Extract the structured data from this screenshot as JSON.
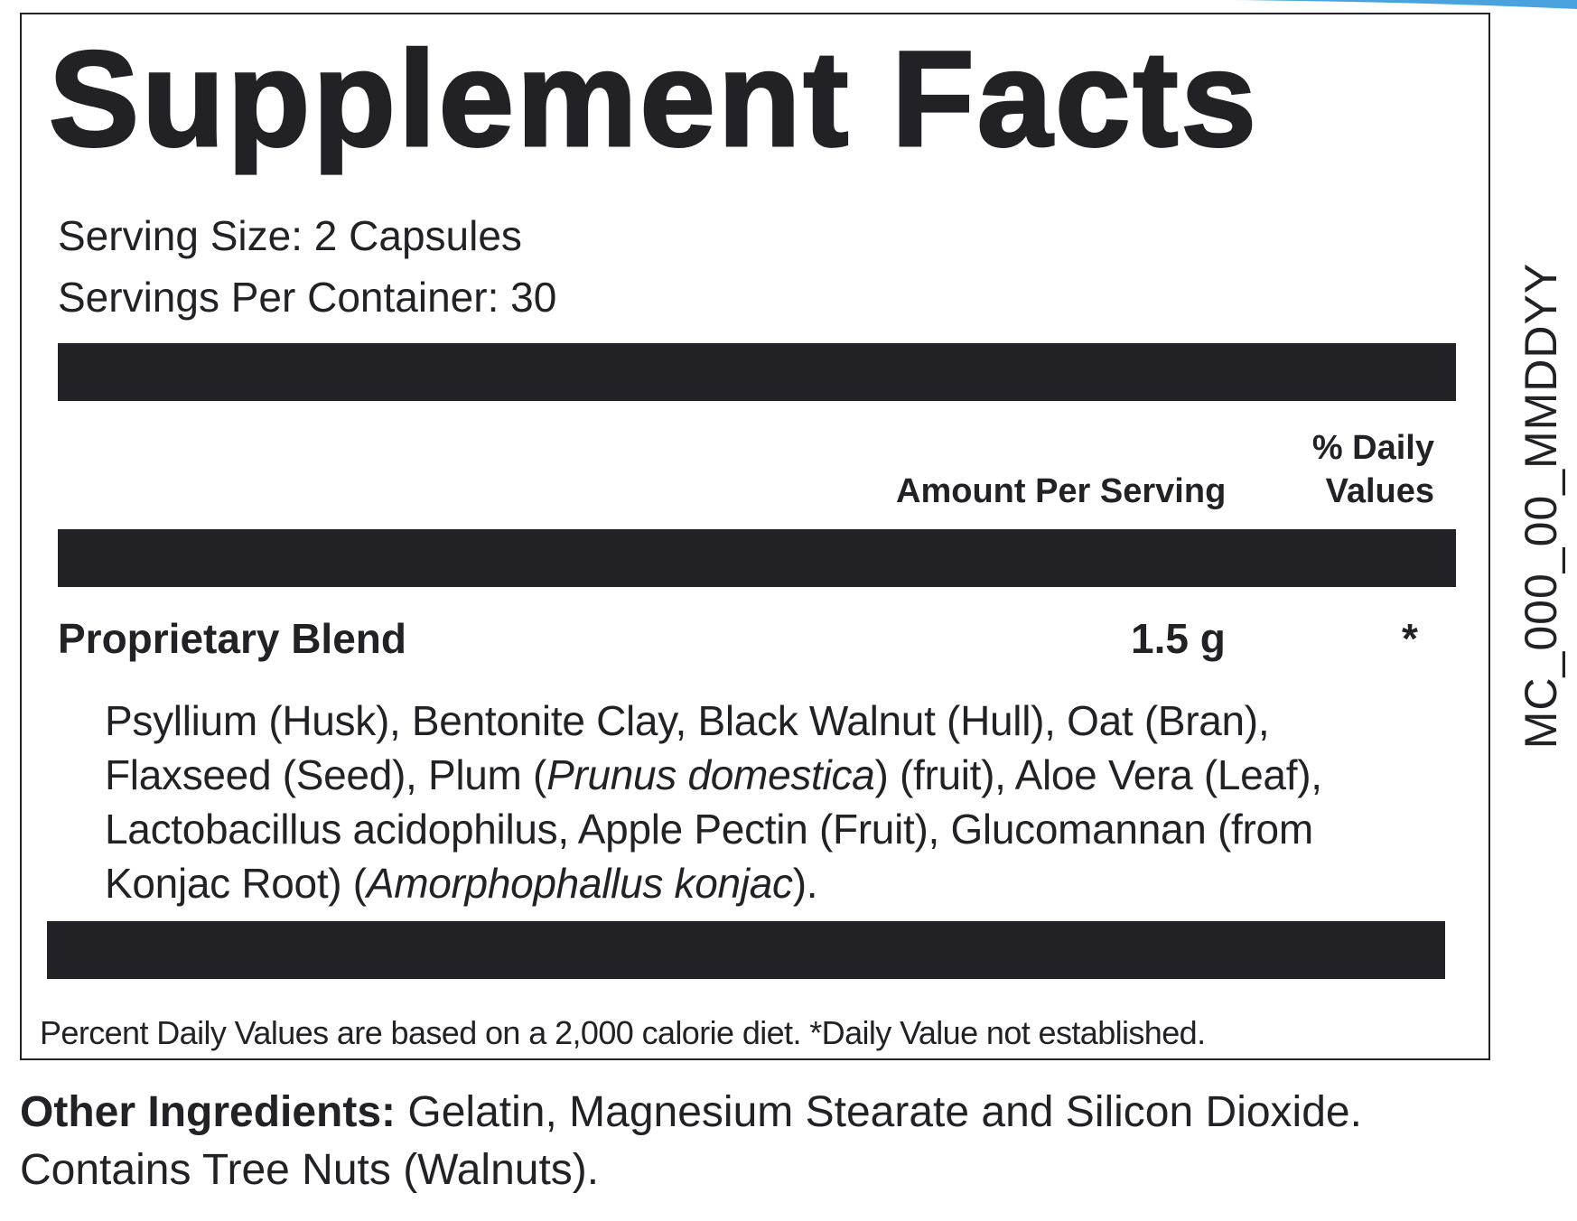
{
  "colors": {
    "ink": "#222226",
    "background": "#ffffff",
    "accent": "#4aa3df"
  },
  "label": {
    "title": "Supplement Facts",
    "serving_size": "Serving Size: 2 Capsules",
    "servings_per_container": "Servings Per Container: 30",
    "amount_header": "Amount Per Serving",
    "dv_header_line1": "% Daily",
    "dv_header_line2": "Values",
    "blend_name": "Proprietary Blend",
    "blend_amount": "1.5 g",
    "blend_dv": "*",
    "ingredients": {
      "l1": "Psyllium (Husk), Bentonite Clay, Black Walnut (Hull), Oat (Bran),",
      "l2_a": "Flaxseed (Seed), Plum (",
      "l2_i": "Prunus domestica",
      "l2_b": ") (fruit), Aloe Vera (Leaf),",
      "l3": "Lactobacillus acidophilus, Apple Pectin (Fruit), Glucomannan (from",
      "l4_a": "Konjac Root) (",
      "l4_i": "Amorphophallus konjac",
      "l4_b": ")."
    },
    "footnote": "Percent Daily Values are based on a 2,000 calorie diet. *Daily Value not established."
  },
  "other_ingredients": {
    "heading": "Other Ingredients:",
    "text": " Gelatin, Magnesium Stearate and Silicon Dioxide.",
    "line2": "Contains Tree Nuts (Walnuts)."
  },
  "side_code": "MC_000_00_MMDDYY"
}
